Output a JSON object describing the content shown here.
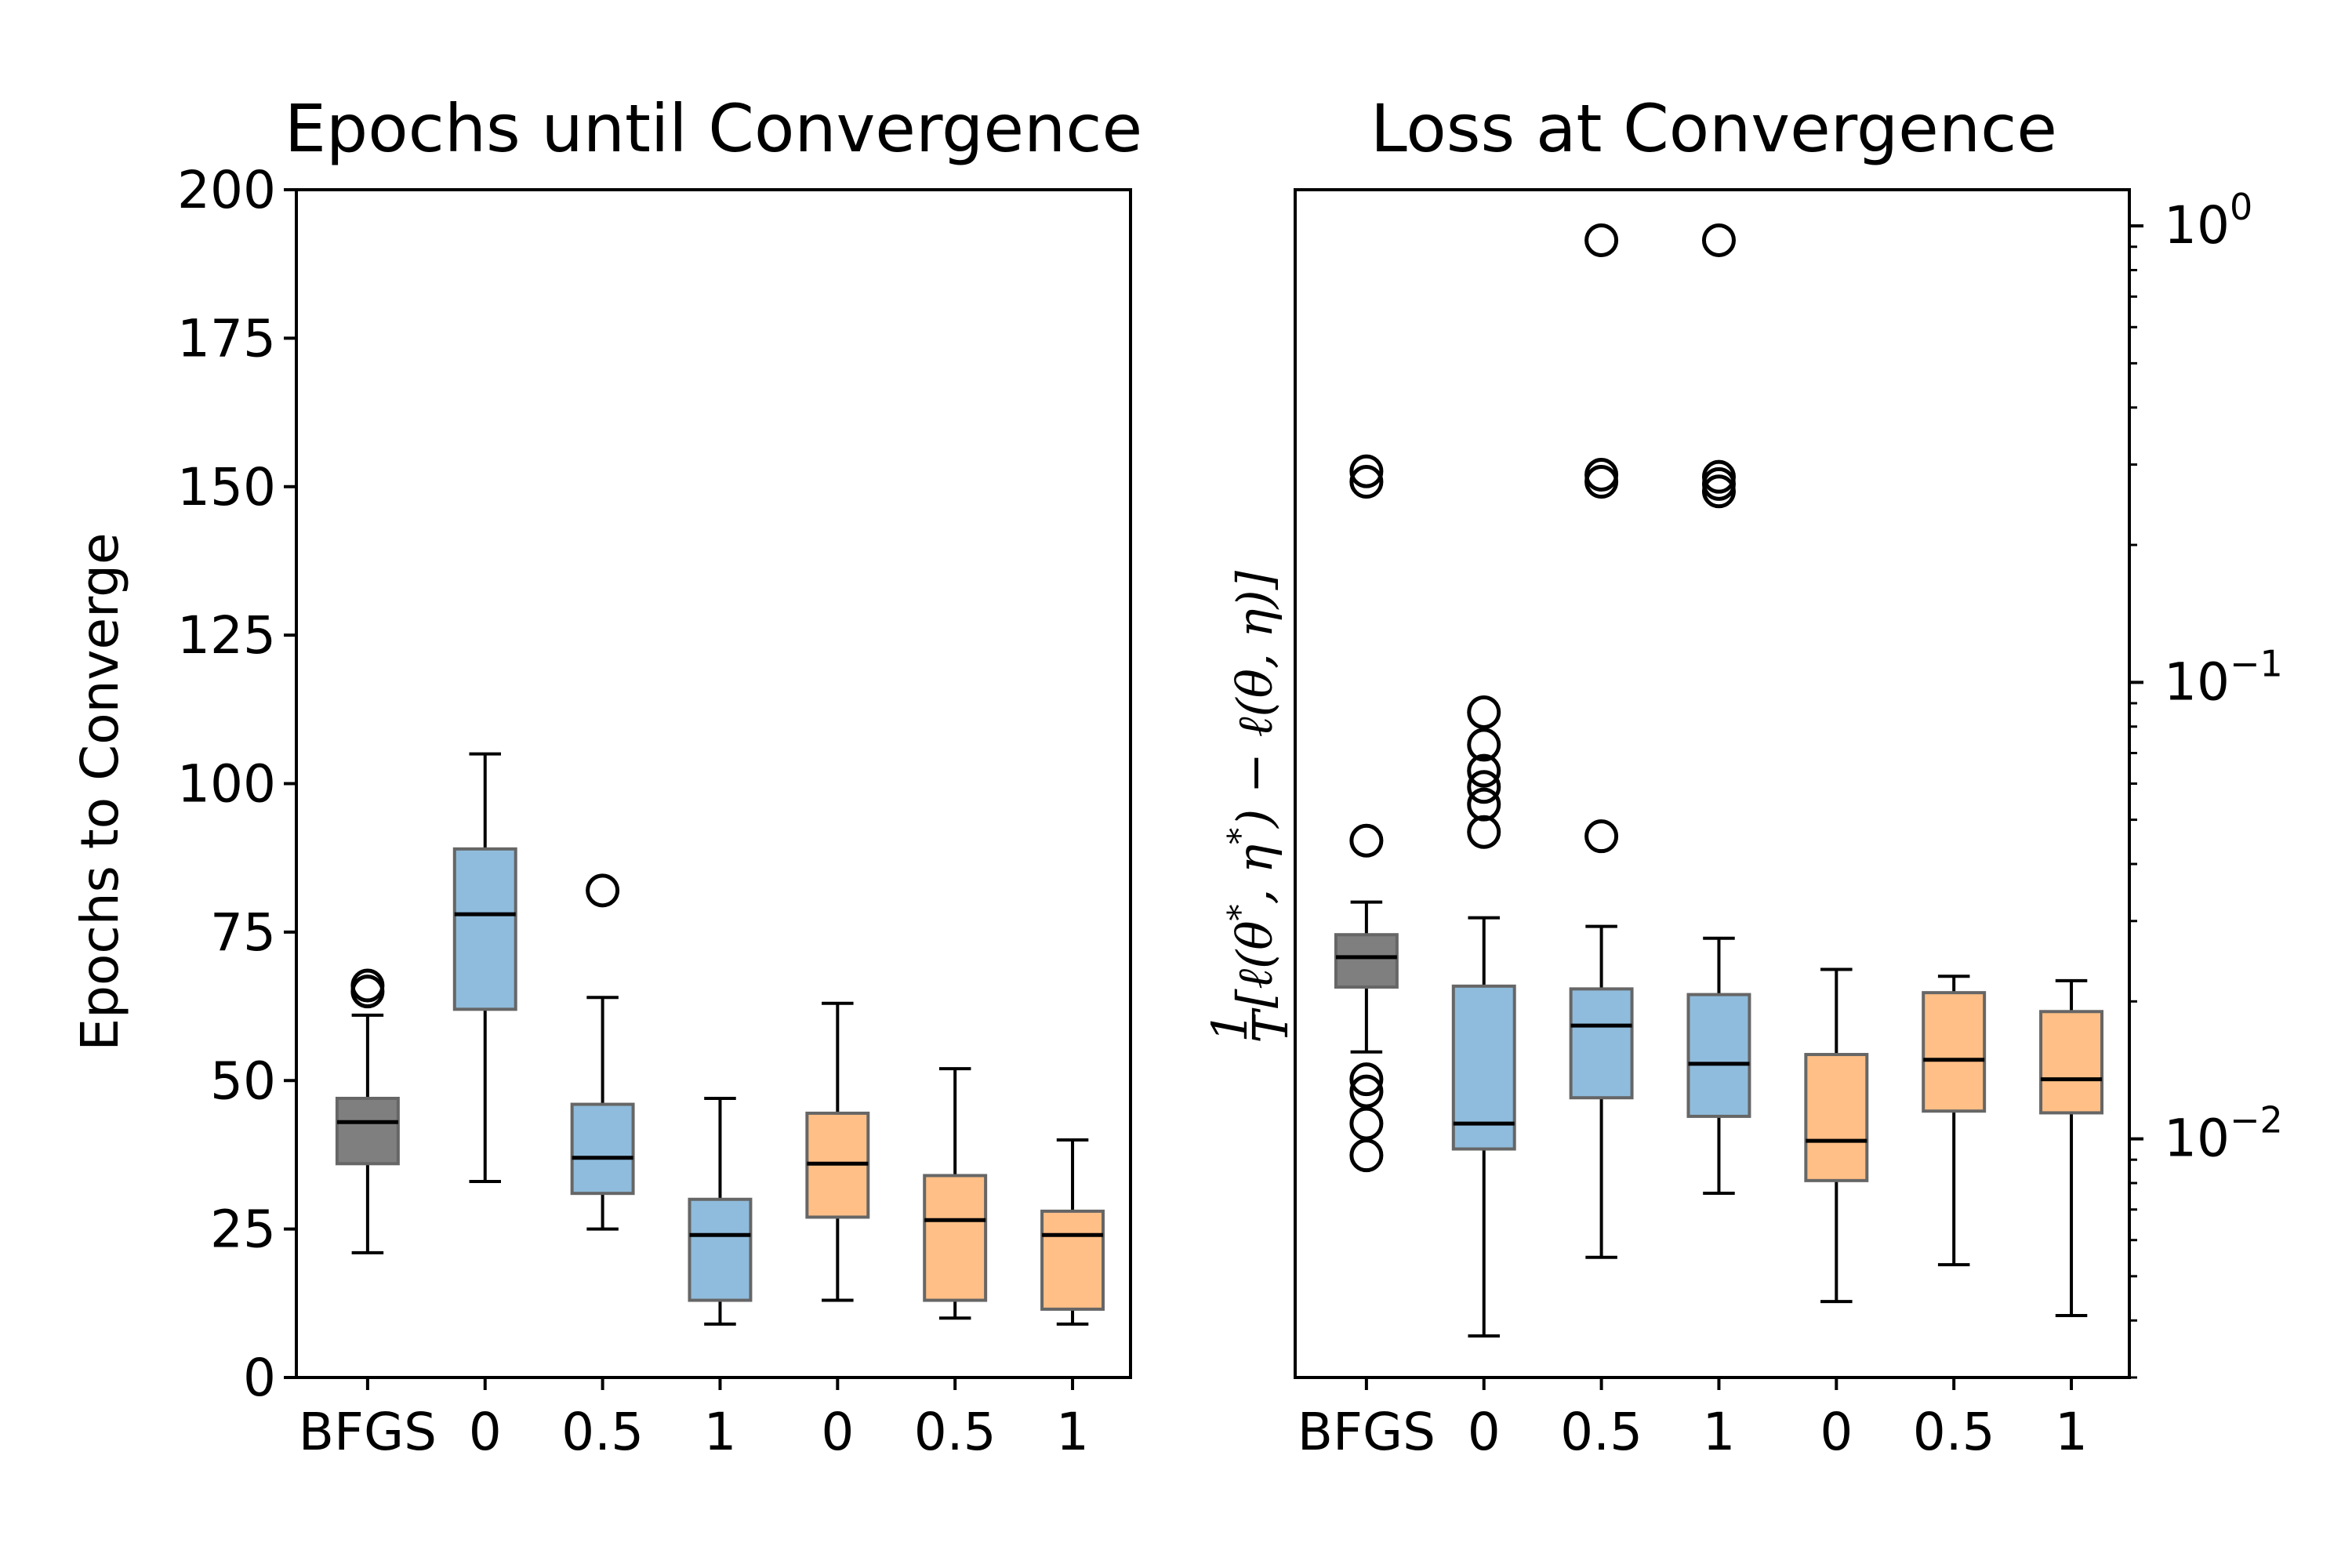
{
  "colors": {
    "bfgs": "#7f7f7f",
    "blue": "#8fbcdc",
    "orange": "#ffbf86",
    "box_edge": "#666666",
    "line": "#000000"
  },
  "chart_data": [
    {
      "type": "box",
      "title": "Epochs until Convergence",
      "xlabel": "",
      "ylabel": "Epochs to Converge",
      "ylim": [
        0,
        200
      ],
      "yscale": "linear",
      "yticks": [
        "0",
        "25",
        "50",
        "75",
        "100",
        "125",
        "150",
        "175",
        "200"
      ],
      "categories": [
        "BFGS",
        "0",
        "0.5",
        "1",
        "0",
        "0.5",
        "1"
      ],
      "box_colors": [
        "bfgs",
        "blue",
        "blue",
        "blue",
        "orange",
        "orange",
        "orange"
      ],
      "boxes": [
        {
          "whislo": 21,
          "q1": 36,
          "med": 43,
          "q3": 47,
          "whishi": 61,
          "fliers": [
            65,
            66
          ]
        },
        {
          "whislo": 33,
          "q1": 62,
          "med": 78,
          "q3": 89,
          "whishi": 105,
          "fliers": []
        },
        {
          "whislo": 25,
          "q1": 31,
          "med": 37,
          "q3": 46,
          "whishi": 64,
          "fliers": [
            82
          ]
        },
        {
          "whislo": 9,
          "q1": 13,
          "med": 24,
          "q3": 30,
          "whishi": 47,
          "fliers": []
        },
        {
          "whislo": 13,
          "q1": 27,
          "med": 36,
          "q3": 44.5,
          "whishi": 63,
          "fliers": []
        },
        {
          "whislo": 10,
          "q1": 13,
          "med": 26.5,
          "q3": 34,
          "whishi": 52,
          "fliers": []
        },
        {
          "whislo": 9,
          "q1": 11.5,
          "med": 24,
          "q3": 28,
          "whishi": 40,
          "fliers": []
        }
      ]
    },
    {
      "type": "box",
      "title": "Loss at Convergence",
      "xlabel": "",
      "ylabel": "1/T [ℓ(θ*, η*) − ℓ(θ, η)]",
      "ylabel_parts": [
        "1",
        "T",
        "[ℓ(θ",
        "*",
        ", η",
        "*",
        ") − ℓ(θ, η)]"
      ],
      "ylim": [
        0.003,
        1.2
      ],
      "yscale": "log",
      "yaxis_side": "right",
      "yticks": [
        {
          "base": "10",
          "exp": "0",
          "value": 1
        },
        {
          "base": "10",
          "exp": "−1",
          "value": 0.1
        },
        {
          "base": "10",
          "exp": "−2",
          "value": 0.01
        }
      ],
      "categories": [
        "BFGS",
        "0",
        "0.5",
        "1",
        "0",
        "0.5",
        "1"
      ],
      "box_colors": [
        "bfgs",
        "blue",
        "blue",
        "blue",
        "orange",
        "orange",
        "orange"
      ],
      "boxes": [
        {
          "whislo": 0.0155,
          "q1": 0.0215,
          "med": 0.025,
          "q3": 0.028,
          "whishi": 0.033,
          "fliers": [
            0.0092,
            0.0108,
            0.0127,
            0.0135,
            0.045,
            0.275,
            0.29
          ]
        },
        {
          "whislo": 0.0037,
          "q1": 0.0095,
          "med": 0.0108,
          "q3": 0.0216,
          "whishi": 0.0305,
          "fliers": [
            0.047,
            0.054,
            0.059,
            0.064,
            0.073,
            0.086
          ]
        },
        {
          "whislo": 0.0055,
          "q1": 0.0123,
          "med": 0.0177,
          "q3": 0.0213,
          "whishi": 0.0292,
          "fliers": [
            0.046,
            0.275,
            0.285,
            0.93
          ]
        },
        {
          "whislo": 0.0076,
          "q1": 0.0112,
          "med": 0.0146,
          "q3": 0.0207,
          "whishi": 0.0275,
          "fliers": [
            0.262,
            0.272,
            0.282,
            0.93
          ]
        },
        {
          "whislo": 0.0044,
          "q1": 0.0081,
          "med": 0.0099,
          "q3": 0.0153,
          "whishi": 0.0235,
          "fliers": []
        },
        {
          "whislo": 0.0053,
          "q1": 0.0115,
          "med": 0.0149,
          "q3": 0.0209,
          "whishi": 0.0227,
          "fliers": []
        },
        {
          "whislo": 0.0041,
          "q1": 0.0114,
          "med": 0.0135,
          "q3": 0.019,
          "whishi": 0.0222,
          "fliers": []
        }
      ]
    }
  ]
}
